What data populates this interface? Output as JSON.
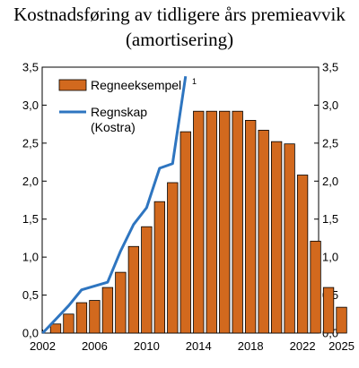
{
  "chart_data": {
    "type": "bar",
    "title_lines": [
      "Kostnadsføring av tidligere års premieavvik",
      "(amortisering)"
    ],
    "x_tick_labels": [
      "2002",
      "2006",
      "2010",
      "2014",
      "2018",
      "2022",
      "2025"
    ],
    "y_tick_labels": [
      "0,0",
      "0,5",
      "1,0",
      "1,5",
      "2,0",
      "2,5",
      "3,0",
      "3,5"
    ],
    "ylim": [
      0,
      3.5
    ],
    "xlim": [
      2002,
      2025
    ],
    "grid": false,
    "legend_position": "top-left",
    "series": [
      {
        "name": "Regneeksempel",
        "name_superscript": "1",
        "type": "bar",
        "color": "#D2691E",
        "x": [
          2003,
          2004,
          2005,
          2006,
          2007,
          2008,
          2009,
          2010,
          2011,
          2012,
          2013,
          2014,
          2015,
          2016,
          2017,
          2018,
          2019,
          2020,
          2021,
          2022,
          2023,
          2024,
          2025
        ],
        "values": [
          0.12,
          0.25,
          0.4,
          0.43,
          0.6,
          0.8,
          1.14,
          1.4,
          1.73,
          1.98,
          2.65,
          2.92,
          2.92,
          2.92,
          2.92,
          2.8,
          2.67,
          2.52,
          2.49,
          2.08,
          1.21,
          0.6,
          0.34
        ]
      },
      {
        "name": "Regnskap",
        "name_line2": "(Kostra)",
        "type": "line",
        "color": "#2E75C0",
        "x": [
          2002,
          2003,
          2004,
          2005,
          2006,
          2007,
          2008,
          2009,
          2010,
          2011,
          2012,
          2013
        ],
        "values": [
          0.0,
          0.18,
          0.36,
          0.57,
          0.62,
          0.67,
          1.08,
          1.43,
          1.65,
          2.17,
          2.23,
          3.38
        ]
      }
    ]
  }
}
